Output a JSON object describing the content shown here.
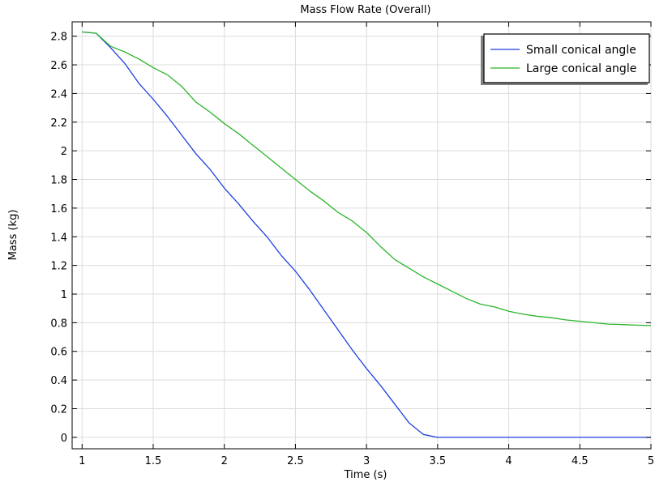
{
  "chart_data": {
    "type": "line",
    "title": "Mass Flow Rate (Overall)",
    "xlabel": "Time (s)",
    "ylabel": "Mass (kg)",
    "xlim": [
      0.93,
      5.0
    ],
    "ylim": [
      -0.08,
      2.9
    ],
    "xticks": [
      1,
      1.5,
      2,
      2.5,
      3,
      3.5,
      4,
      4.5,
      5
    ],
    "xtick_labels": [
      "1",
      "1.5",
      "2",
      "2.5",
      "3",
      "3.5",
      "4",
      "4.5",
      "5"
    ],
    "yticks": [
      0,
      0.2,
      0.4,
      0.6,
      0.8,
      1,
      1.2,
      1.4,
      1.6,
      1.8,
      2,
      2.2,
      2.4,
      2.6,
      2.8
    ],
    "ytick_labels": [
      "0",
      "0.2",
      "0.4",
      "0.6",
      "0.8",
      "1",
      "1.2",
      "1.4",
      "1.6",
      "1.8",
      "2",
      "2.2",
      "2.4",
      "2.6",
      "2.8"
    ],
    "grid": true,
    "legend_position": "top-right",
    "series": [
      {
        "name": "Small conical angle",
        "color": "#1f3fe0",
        "x": [
          1.0,
          1.1,
          1.2,
          1.3,
          1.4,
          1.5,
          1.6,
          1.7,
          1.8,
          1.9,
          2.0,
          2.1,
          2.2,
          2.3,
          2.4,
          2.5,
          2.6,
          2.7,
          2.8,
          2.9,
          3.0,
          3.1,
          3.2,
          3.3,
          3.4,
          3.5,
          3.6,
          3.8,
          4.0,
          4.5,
          5.0
        ],
        "y": [
          2.83,
          2.82,
          2.72,
          2.61,
          2.47,
          2.36,
          2.24,
          2.11,
          1.98,
          1.87,
          1.74,
          1.63,
          1.51,
          1.4,
          1.27,
          1.16,
          1.03,
          0.89,
          0.75,
          0.61,
          0.48,
          0.36,
          0.23,
          0.1,
          0.02,
          0.0,
          0.0,
          0.0,
          0.0,
          0.0,
          0.0
        ]
      },
      {
        "name": "Large conical angle",
        "color": "#2bb52b",
        "x": [
          1.0,
          1.1,
          1.2,
          1.3,
          1.4,
          1.5,
          1.6,
          1.7,
          1.8,
          1.9,
          2.0,
          2.1,
          2.2,
          2.3,
          2.4,
          2.5,
          2.6,
          2.7,
          2.8,
          2.9,
          3.0,
          3.1,
          3.2,
          3.3,
          3.4,
          3.5,
          3.6,
          3.7,
          3.8,
          3.9,
          4.0,
          4.1,
          4.2,
          4.3,
          4.4,
          4.5,
          4.6,
          4.7,
          4.8,
          4.9,
          5.0
        ],
        "y": [
          2.83,
          2.82,
          2.73,
          2.69,
          2.64,
          2.58,
          2.53,
          2.45,
          2.34,
          2.27,
          2.19,
          2.12,
          2.04,
          1.96,
          1.88,
          1.8,
          1.72,
          1.65,
          1.57,
          1.51,
          1.43,
          1.33,
          1.24,
          1.18,
          1.12,
          1.07,
          1.02,
          0.97,
          0.93,
          0.91,
          0.88,
          0.86,
          0.845,
          0.835,
          0.82,
          0.81,
          0.8,
          0.79,
          0.787,
          0.783,
          0.78
        ]
      }
    ]
  }
}
